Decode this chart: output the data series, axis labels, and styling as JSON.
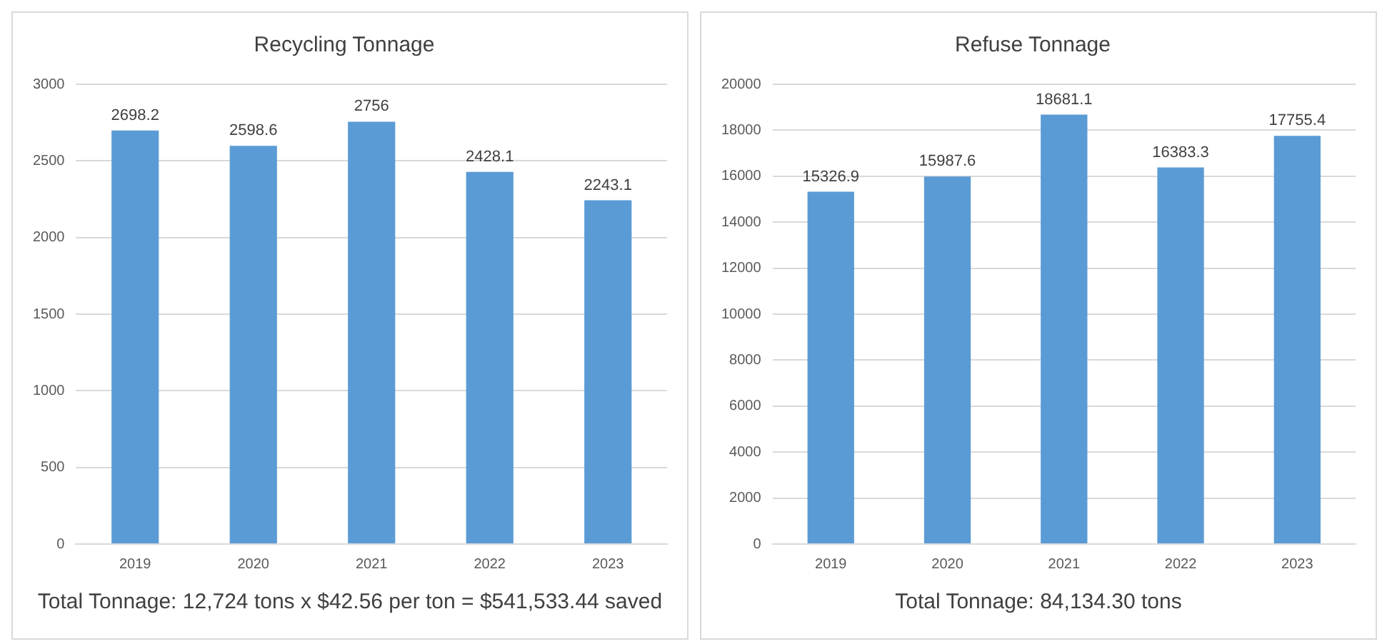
{
  "chart_data": [
    {
      "type": "bar",
      "title": "Recycling Tonnage",
      "categories": [
        "2019",
        "2020",
        "2021",
        "2022",
        "2023"
      ],
      "values": [
        2698.2,
        2598.6,
        2756,
        2428.1,
        2243.1
      ],
      "color": "#5b9bd5",
      "ylim": [
        0,
        3000
      ],
      "yticks": [
        0,
        500,
        1000,
        1500,
        2000,
        2500,
        3000
      ],
      "grid": "y",
      "data_labels": true,
      "legend": false,
      "annotations": [
        "Total Tonnage: 12,724 tons x $42.56 per ton = $541,533.44 saved"
      ]
    },
    {
      "type": "bar",
      "title": "Refuse Tonnage",
      "categories": [
        "2019",
        "2020",
        "2021",
        "2022",
        "2023"
      ],
      "values": [
        15326.9,
        15987.6,
        18681.1,
        16383.3,
        17755.4
      ],
      "color": "#5b9bd5",
      "ylim": [
        0,
        20000
      ],
      "yticks": [
        0,
        2000,
        4000,
        6000,
        8000,
        10000,
        12000,
        14000,
        16000,
        18000,
        20000
      ],
      "grid": "y",
      "data_labels": true,
      "legend": false,
      "annotations": [
        "Total Tonnage: 84,134.30 tons"
      ]
    }
  ]
}
